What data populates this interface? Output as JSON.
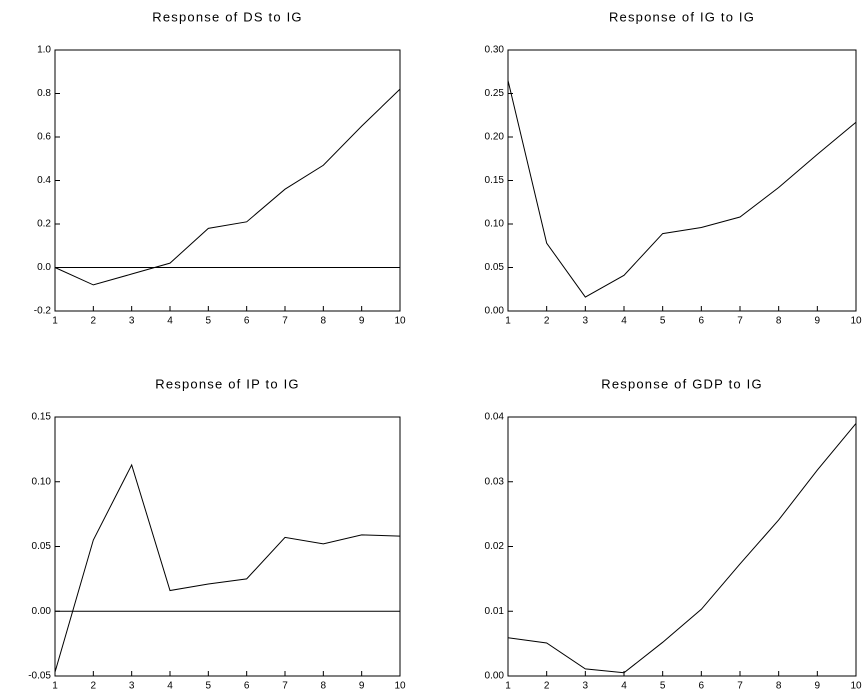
{
  "chart_data": [
    {
      "type": "line",
      "title": "Response of DS to IG",
      "x": [
        1,
        2,
        3,
        4,
        5,
        6,
        7,
        8,
        9,
        10
      ],
      "values": [
        0.0,
        -0.08,
        -0.03,
        0.02,
        0.18,
        0.21,
        0.36,
        0.47,
        0.65,
        0.82
      ],
      "color": "#000000",
      "xlim": [
        1,
        10
      ],
      "xticks": [
        1,
        2,
        3,
        4,
        5,
        6,
        7,
        8,
        9,
        10
      ],
      "ylim": [
        -0.2,
        1.0
      ],
      "yticks": [
        {
          "value": -0.2,
          "label": "-0.2"
        },
        {
          "value": 0,
          "label": "0.0"
        },
        0.2,
        0.4,
        0.6,
        0.8,
        {
          "value": 1,
          "label": "1.0"
        }
      ],
      "zero_line": true
    },
    {
      "type": "line",
      "title": "Response of IG to IG",
      "x": [
        1,
        2,
        3,
        4,
        5,
        6,
        7,
        8,
        9,
        10
      ],
      "values": [
        0.265,
        0.078,
        0.016,
        0.041,
        0.089,
        0.096,
        0.108,
        0.142,
        0.18,
        0.217
      ],
      "color": "#000000",
      "xlim": [
        1,
        10
      ],
      "xticks": [
        1,
        2,
        3,
        4,
        5,
        6,
        7,
        8,
        9,
        10
      ],
      "ylim": [
        0,
        0.3
      ],
      "yticks": [
        {
          "value": 0,
          "label": "0.00"
        },
        0.05,
        {
          "value": 0.1,
          "label": "0.10"
        },
        0.15,
        {
          "value": 0.2,
          "label": "0.20"
        },
        0.25,
        {
          "value": 0.3,
          "label": "0.30"
        }
      ],
      "zero_line": false
    },
    {
      "type": "line",
      "title": "Response of IP to IG",
      "x": [
        1,
        2,
        3,
        4,
        5,
        6,
        7,
        8,
        9,
        10
      ],
      "values": [
        -0.047,
        0.055,
        0.113,
        0.016,
        0.021,
        0.025,
        0.057,
        0.052,
        0.059,
        0.058
      ],
      "color": "#000000",
      "xlim": [
        1,
        10
      ],
      "xticks": [
        1,
        2,
        3,
        4,
        5,
        6,
        7,
        8,
        9,
        10
      ],
      "ylim": [
        -0.05,
        0.15
      ],
      "yticks": [
        {
          "value": -0.05,
          "label": "-0.05"
        },
        {
          "value": 0,
          "label": "0.00"
        },
        0.05,
        {
          "value": 0.1,
          "label": "0.10"
        },
        0.15
      ],
      "zero_line": true
    },
    {
      "type": "line",
      "title": "Response of GDP to IG",
      "x": [
        1,
        2,
        3,
        4,
        5,
        6,
        7,
        8,
        9,
        10
      ],
      "values": [
        0.0059,
        0.0051,
        0.0011,
        0.0005,
        0.0052,
        0.0103,
        0.0173,
        0.0241,
        0.0318,
        0.039
      ],
      "color": "#000000",
      "xlim": [
        1,
        10
      ],
      "xticks": [
        1,
        2,
        3,
        4,
        5,
        6,
        7,
        8,
        9,
        10
      ],
      "ylim": [
        0,
        0.04
      ],
      "yticks": [
        {
          "value": 0,
          "label": "0.00"
        },
        0.01,
        0.02,
        0.03,
        0.04
      ],
      "zero_line": false
    }
  ]
}
